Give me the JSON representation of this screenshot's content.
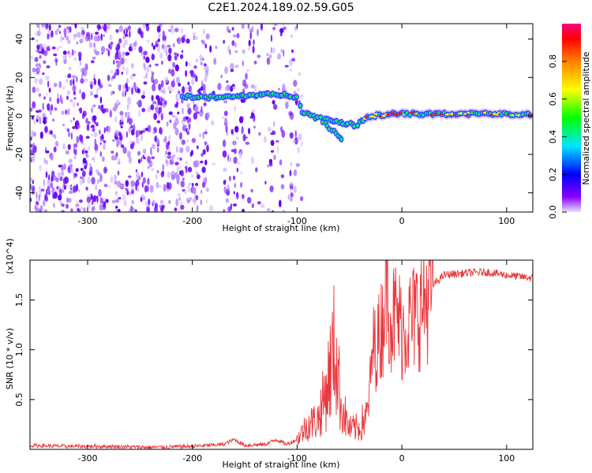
{
  "chart_data": [
    {
      "type": "heatmap",
      "title": "C2E1.2024.189.02.59.G05",
      "xlabel": "Height of straight line (km)",
      "ylabel": "Frequency (Hz)",
      "xlim": [
        -355,
        125
      ],
      "ylim": [
        -50,
        48
      ],
      "x_ticks": [
        "-300",
        "-200",
        "-100",
        "0",
        "100"
      ],
      "y_ticks": [
        "-40",
        "-20",
        "0",
        "20",
        "40"
      ],
      "colorbar": {
        "label": "Normalized spectral amplitude",
        "range": [
          0,
          1
        ],
        "ticks": [
          "0.0",
          "0.2",
          "0.4",
          "0.6",
          "0.8"
        ]
      },
      "features": {
        "noise_region_x": [
          -355,
          -95
        ],
        "trace_points": [
          [
            -210,
            10
          ],
          [
            -200,
            10
          ],
          [
            -180,
            9.5
          ],
          [
            -160,
            10
          ],
          [
            -140,
            11
          ],
          [
            -110,
            11
          ],
          [
            -100,
            10
          ],
          [
            -95,
            2
          ],
          [
            -80,
            -1
          ],
          [
            -60,
            -3
          ],
          [
            -45,
            -5
          ],
          [
            -30,
            0
          ],
          [
            -10,
            1
          ],
          [
            10,
            1
          ],
          [
            40,
            1
          ],
          [
            70,
            1
          ],
          [
            100,
            1
          ],
          [
            125,
            1
          ]
        ],
        "branch_points": [
          [
            -75,
            -3
          ],
          [
            -65,
            -8
          ],
          [
            -55,
            -14
          ]
        ]
      }
    },
    {
      "type": "line",
      "xlabel": "Height of straight line (km)",
      "ylabel": "SNR (10 * v/v)",
      "y_multiplier": "(x10^4)",
      "xlim": [
        -355,
        125
      ],
      "ylim": [
        0,
        1.9
      ],
      "x_ticks": [
        "-300",
        "-200",
        "-100",
        "0",
        "100"
      ],
      "y_ticks": [
        "0.5",
        "1.0",
        "1.5"
      ],
      "series": [
        {
          "color": "#e8383d",
          "points": [
            [
              -355,
              0.04
            ],
            [
              -320,
              0.03
            ],
            [
              -280,
              0.03
            ],
            [
              -240,
              0.02
            ],
            [
              -200,
              0.03
            ],
            [
              -170,
              0.05
            ],
            [
              -160,
              0.1
            ],
            [
              -150,
              0.04
            ],
            [
              -130,
              0.05
            ],
            [
              -120,
              0.1
            ],
            [
              -110,
              0.05
            ],
            [
              -100,
              0.1
            ],
            [
              -90,
              0.25
            ],
            [
              -80,
              0.3
            ],
            [
              -72,
              0.6
            ],
            [
              -64,
              1.05
            ],
            [
              -58,
              0.45
            ],
            [
              -50,
              0.2
            ],
            [
              -40,
              0.22
            ],
            [
              -32,
              0.4
            ],
            [
              -28,
              1.0
            ],
            [
              -22,
              1.1
            ],
            [
              -18,
              1.3
            ],
            [
              -15,
              1.85
            ],
            [
              -10,
              1.3
            ],
            [
              -5,
              1.35
            ],
            [
              0,
              1.2
            ],
            [
              10,
              1.3
            ],
            [
              20,
              1.45
            ],
            [
              30,
              1.65
            ],
            [
              40,
              1.75
            ],
            [
              60,
              1.77
            ],
            [
              80,
              1.78
            ],
            [
              100,
              1.75
            ],
            [
              125,
              1.72
            ]
          ]
        }
      ]
    }
  ],
  "colors": {
    "line": "#e8383d",
    "noise_palette": [
      "#6000ee",
      "#7a10ff",
      "#b388ff",
      "#d9c2ff"
    ],
    "colorbar_stops": [
      "#e8e0ff",
      "#8800ff",
      "#0000ff",
      "#00e5ff",
      "#00ff00",
      "#ffff00",
      "#ff8000",
      "#ff0000",
      "#ff0080"
    ]
  }
}
